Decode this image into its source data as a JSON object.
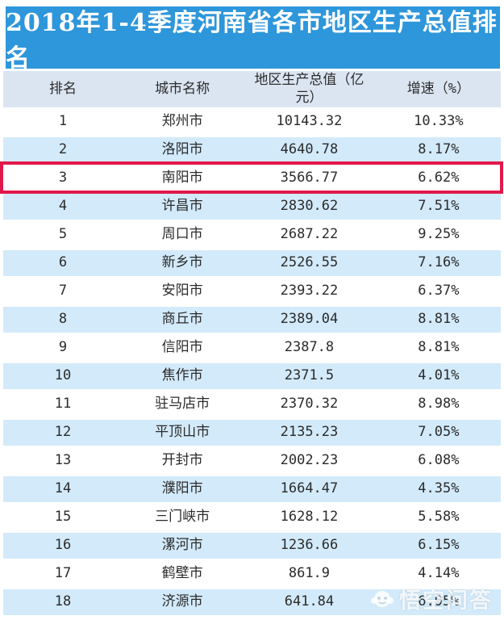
{
  "title": "2018年1-4季度河南省各市地区生产总值排名",
  "table": {
    "headers": [
      "排名",
      "城市名称",
      "地区生产总值（亿元）",
      "增速（%）"
    ],
    "highlighted_rank": 3,
    "rows": [
      {
        "rank": "1",
        "city": "郑州市",
        "gdp": "10143.32",
        "growth": "10.33%"
      },
      {
        "rank": "2",
        "city": "洛阳市",
        "gdp": "4640.78",
        "growth": "8.17%"
      },
      {
        "rank": "3",
        "city": "南阳市",
        "gdp": "3566.77",
        "growth": "6.62%"
      },
      {
        "rank": "4",
        "city": "许昌市",
        "gdp": "2830.62",
        "growth": "7.51%"
      },
      {
        "rank": "5",
        "city": "周口市",
        "gdp": "2687.22",
        "growth": "9.25%"
      },
      {
        "rank": "6",
        "city": "新乡市",
        "gdp": "2526.55",
        "growth": "7.16%"
      },
      {
        "rank": "7",
        "city": "安阳市",
        "gdp": "2393.22",
        "growth": "6.37%"
      },
      {
        "rank": "8",
        "city": "商丘市",
        "gdp": "2389.04",
        "growth": "8.81%"
      },
      {
        "rank": "9",
        "city": "信阳市",
        "gdp": "2387.8",
        "growth": "8.81%"
      },
      {
        "rank": "10",
        "city": "焦作市",
        "gdp": "2371.5",
        "growth": "4.01%"
      },
      {
        "rank": "11",
        "city": "驻马店市",
        "gdp": "2370.32",
        "growth": "8.98%"
      },
      {
        "rank": "12",
        "city": "平顶山市",
        "gdp": "2135.23",
        "growth": "7.05%"
      },
      {
        "rank": "13",
        "city": "开封市",
        "gdp": "2002.23",
        "growth": "6.08%"
      },
      {
        "rank": "14",
        "city": "濮阳市",
        "gdp": "1664.47",
        "growth": "4.35%"
      },
      {
        "rank": "15",
        "city": "三门峡市",
        "gdp": "1628.12",
        "growth": "5.58%"
      },
      {
        "rank": "16",
        "city": "漯河市",
        "gdp": "1236.66",
        "growth": "6.15%"
      },
      {
        "rank": "17",
        "city": "鹤壁市",
        "gdp": "861.9",
        "growth": "4.14%"
      },
      {
        "rank": "18",
        "city": "济源市",
        "gdp": "641.84",
        "growth": "6.95%"
      }
    ]
  },
  "watermark": {
    "text": "悟空问答"
  },
  "colors": {
    "title_bar_bg": "#2e96da",
    "title_text": "#ffffff",
    "header_bg": "#dbe5f2",
    "row_alt_bg": "#d3eafa",
    "highlight_border": "#e1194b",
    "body_text": "#2b2b2b"
  },
  "chart_data": {
    "type": "table",
    "title": "2018年1-4季度河南省各市地区生产总值排名",
    "columns": [
      "排名",
      "城市名称",
      "地区生产总值（亿元）",
      "增速（%）"
    ],
    "rows": [
      [
        1,
        "郑州市",
        10143.32,
        "10.33%"
      ],
      [
        2,
        "洛阳市",
        4640.78,
        "8.17%"
      ],
      [
        3,
        "南阳市",
        3566.77,
        "6.62%"
      ],
      [
        4,
        "许昌市",
        2830.62,
        "7.51%"
      ],
      [
        5,
        "周口市",
        2687.22,
        "9.25%"
      ],
      [
        6,
        "新乡市",
        2526.55,
        "7.16%"
      ],
      [
        7,
        "安阳市",
        2393.22,
        "6.37%"
      ],
      [
        8,
        "商丘市",
        2389.04,
        "8.81%"
      ],
      [
        9,
        "信阳市",
        2387.8,
        "8.81%"
      ],
      [
        10,
        "焦作市",
        2371.5,
        "4.01%"
      ],
      [
        11,
        "驻马店市",
        2370.32,
        "8.98%"
      ],
      [
        12,
        "平顶山市",
        2135.23,
        "7.05%"
      ],
      [
        13,
        "开封市",
        2002.23,
        "6.08%"
      ],
      [
        14,
        "濮阳市",
        1664.47,
        "4.35%"
      ],
      [
        15,
        "三门峡市",
        1628.12,
        "5.58%"
      ],
      [
        16,
        "漯河市",
        1236.66,
        "6.15%"
      ],
      [
        17,
        "鹤壁市",
        861.9,
        "4.14%"
      ],
      [
        18,
        "济源市",
        641.84,
        "6.95%"
      ]
    ],
    "notes": "Row 3 (南阳市) is outlined with a red highlight box"
  }
}
